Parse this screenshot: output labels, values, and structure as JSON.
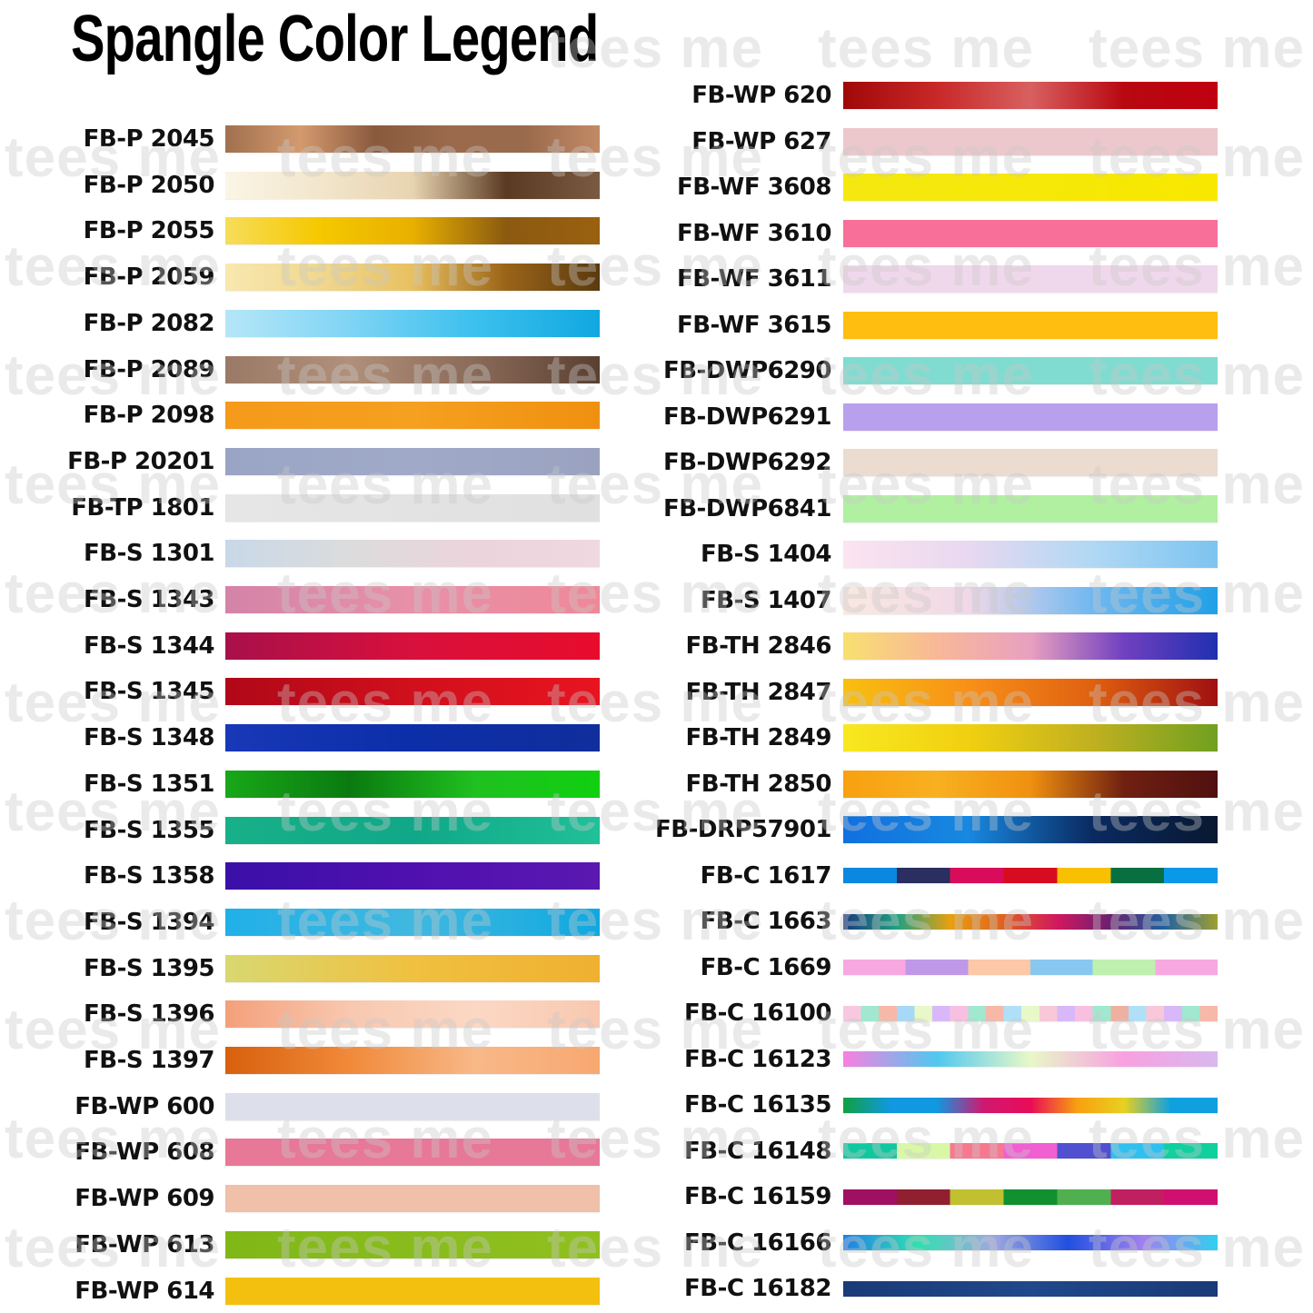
{
  "title": "Spangle Color Legend",
  "watermark": "tees me",
  "left_column": [
    {
      "code": "FB-P 2045",
      "colors": [
        "#a0704f",
        "#d49a6e",
        "#8a5a3e",
        "#9b6a4c",
        "#9a6a4c",
        "#c28a66"
      ]
    },
    {
      "code": "FB-P 2050",
      "colors": [
        "#fbf5e6",
        "#f2e6cc",
        "#e8d4b0",
        "#5a3a22",
        "#7a5a40"
      ]
    },
    {
      "code": "FB-P 2055",
      "colors": [
        "#f7dd5a",
        "#f5c800",
        "#e8b000",
        "#8b5a10",
        "#9a6010"
      ]
    },
    {
      "code": "FB-P 2059",
      "colors": [
        "#f8e8b0",
        "#f0d890",
        "#e8c060",
        "#9a6418",
        "#5a3a10"
      ]
    },
    {
      "code": "FB-P 2082",
      "colors": [
        "#b5e6f8",
        "#7fd4f4",
        "#3cc0ee",
        "#10a8e0"
      ]
    },
    {
      "code": "FB-P 2089",
      "colors": [
        "#9a7a66",
        "#b0907a",
        "#8a6a58",
        "#5a4032"
      ]
    },
    {
      "code": "FB-P 2098",
      "colors": [
        "#f59a1a",
        "#f5a020",
        "#f09010"
      ]
    },
    {
      "code": "FB-P 20201",
      "colors": [
        "#9aa4c4",
        "#a0aac8",
        "#9aa2c0"
      ]
    },
    {
      "code": "FB-TP 1801",
      "colors": [
        "#e6e6e6",
        "#e0e0e0"
      ]
    },
    {
      "code": "FB-S 1301",
      "colors": [
        "#c8d8e8",
        "#dcdcdc",
        "#ecd4dc",
        "#f0d8e0"
      ]
    },
    {
      "code": "FB-S 1343",
      "colors": [
        "#d484a8",
        "#e890a8",
        "#f08898"
      ]
    },
    {
      "code": "FB-S 1344",
      "colors": [
        "#a8104a",
        "#d8103c",
        "#e80c2c"
      ]
    },
    {
      "code": "FB-S 1345",
      "colors": [
        "#b00818",
        "#d0101c",
        "#e81420"
      ]
    },
    {
      "code": "FB-S 1348",
      "colors": [
        "#1838b8",
        "#0c2ea8",
        "#102e9c"
      ]
    },
    {
      "code": "FB-S 1351",
      "colors": [
        "#18a818",
        "#0a7a10",
        "#20c020",
        "#10d010"
      ]
    },
    {
      "code": "FB-S 1355",
      "colors": [
        "#18b088",
        "#10a888",
        "#20c098"
      ]
    },
    {
      "code": "FB-S 1358",
      "colors": [
        "#3a10a8",
        "#5010b0",
        "#5a18b0"
      ]
    },
    {
      "code": "FB-S 1394",
      "colors": [
        "#20b0e8",
        "#40b8e0",
        "#10a8e0"
      ]
    },
    {
      "code": "FB-S 1395",
      "colors": [
        "#d8d870",
        "#f0c040",
        "#f0b030"
      ]
    },
    {
      "code": "FB-S 1396",
      "colors": [
        "#f4a07a",
        "#f8c8b0",
        "#fbd8c4",
        "#f8c8b0"
      ]
    },
    {
      "code": "FB-S 1397",
      "colors": [
        "#d8600c",
        "#f08a3a",
        "#f8b888",
        "#f8a870"
      ]
    },
    {
      "code": "FB-WP 600",
      "colors": [
        "#dde0ea",
        "#dde0ea"
      ]
    },
    {
      "code": "FB-WP 608",
      "colors": [
        "#e87898",
        "#e87898"
      ]
    },
    {
      "code": "FB-WP 609",
      "colors": [
        "#f0c0a8",
        "#f0c0a8"
      ]
    },
    {
      "code": "FB-WP 613",
      "colors": [
        "#80b818",
        "#90c020"
      ]
    },
    {
      "code": "FB-WP 614",
      "colors": [
        "#f4c010",
        "#f4c010"
      ]
    }
  ],
  "right_column": [
    {
      "code": "FB-WP 620",
      "colors": [
        "#a00808",
        "#c82828",
        "#d86060",
        "#b80810",
        "#c00010"
      ]
    },
    {
      "code": "FB-WP 627",
      "colors": [
        "#ecc8cc",
        "#ecc8cc"
      ]
    },
    {
      "code": "FB-WF 3608",
      "colors": [
        "#f4e810",
        "#f8e800"
      ]
    },
    {
      "code": "FB-WF 3610",
      "colors": [
        "#f8709a",
        "#f8709a"
      ]
    },
    {
      "code": "FB-WF 3611",
      "colors": [
        "#f0d8ec",
        "#f0d8ec"
      ]
    },
    {
      "code": "FB-WF 3615",
      "colors": [
        "#ffbe10",
        "#ffbe10"
      ]
    },
    {
      "code": "FB-DWP6290",
      "colors": [
        "#80dcd0",
        "#80dcd0"
      ]
    },
    {
      "code": "FB-DWP6291",
      "colors": [
        "#b8a0ec",
        "#b8a0ec"
      ]
    },
    {
      "code": "FB-DWP6292",
      "colors": [
        "#ecdcd0",
        "#ecdcd0"
      ]
    },
    {
      "code": "FB-DWP6841",
      "colors": [
        "#b0f0a0",
        "#b0f0a0"
      ]
    },
    {
      "code": "FB-S 1404",
      "colors": [
        "#fce4f0",
        "#e8d8f0",
        "#b0d8f4",
        "#7cc4f0"
      ]
    },
    {
      "code": "FB-S 1407",
      "colors": [
        "#fbe8e0",
        "#f0d8e8",
        "#70b8f0",
        "#20a0e8"
      ]
    },
    {
      "code": "FB-TH 2846",
      "colors": [
        "#f8e070",
        "#f8b898",
        "#e8a0c0",
        "#7040c0",
        "#2030b0"
      ]
    },
    {
      "code": "FB-TH 2847",
      "colors": [
        "#f8c010",
        "#f89018",
        "#e06010",
        "#a01010"
      ]
    },
    {
      "code": "FB-TH 2849",
      "colors": [
        "#f8e820",
        "#f0d010",
        "#c0b020",
        "#70a020"
      ]
    },
    {
      "code": "FB-TH 2850",
      "colors": [
        "#f8a010",
        "#f8b020",
        "#f09010",
        "#702010",
        "#501010"
      ]
    },
    {
      "code": "FB-DRP57901",
      "colors": [
        "#1070e0",
        "#1888e0",
        "#0a2a60",
        "#081830"
      ]
    },
    {
      "code": "FB-C 1617",
      "segmented": true,
      "colors": [
        "#0a88e0",
        "#2a2e60",
        "#d80c5a",
        "#d80c20",
        "#f8c000",
        "#087040",
        "#0a98e8"
      ]
    },
    {
      "code": "FB-C 1663",
      "colors": [
        "#1a3a80",
        "#20a080",
        "#e8a010",
        "#e06020",
        "#d01860",
        "#6a2070",
        "#2060a0",
        "#a0a030"
      ]
    },
    {
      "code": "FB-C 1669",
      "segmented": true,
      "colors": [
        "#f8a8e0",
        "#c098e8",
        "#fcc8a8",
        "#88c8f0",
        "#c0f0b0",
        "#f8a8e0"
      ]
    },
    {
      "code": "FB-C 16100",
      "segmented": true,
      "colors": [
        "#f8c8e0",
        "#a0e8d0",
        "#f8b8a8",
        "#a8d8f8",
        "#e8f8c8",
        "#d8b8f8",
        "#f8c0e0",
        "#a0e8d0",
        "#f8b8a8",
        "#b0e0f8",
        "#e8f8c8",
        "#f8c8d8",
        "#d8b8f8",
        "#f8c0e0",
        "#a0e8d0",
        "#f0b0a0",
        "#b0e0f8",
        "#f8c8d8",
        "#d8b8f8",
        "#a0e8d0",
        "#f8b8a8"
      ]
    },
    {
      "code": "FB-C 16123",
      "colors": [
        "#f880e0",
        "#50c8f0",
        "#e8f8c8",
        "#f8a0e0",
        "#d8b8f0"
      ]
    },
    {
      "code": "FB-C 16135",
      "colors": [
        "#10a040",
        "#1098e0",
        "#1098e0",
        "#d01870",
        "#e80c58",
        "#f8a010",
        "#e8d020",
        "#10a0e0",
        "#10a0e0"
      ]
    },
    {
      "code": "FB-C 16148",
      "segmented": true,
      "colors": [
        "#10c8a0",
        "#d8f8a8",
        "#f87890",
        "#f060d0",
        "#5050d0",
        "#30c0f0",
        "#10d0a0"
      ]
    },
    {
      "code": "FB-C 16159",
      "segmented": true,
      "colors": [
        "#a01060",
        "#902030",
        "#c0c030",
        "#109030",
        "#50b050",
        "#c02060",
        "#d01070"
      ]
    },
    {
      "code": "FB-C 16166",
      "colors": [
        "#2080e8",
        "#30e0b0",
        "#a0a8e0",
        "#2050e0",
        "#a080f0",
        "#30d0f0"
      ]
    },
    {
      "code": "FB-C 16182",
      "colors": [
        "#1a3a78",
        "#20488a",
        "#1a3a78"
      ]
    }
  ]
}
